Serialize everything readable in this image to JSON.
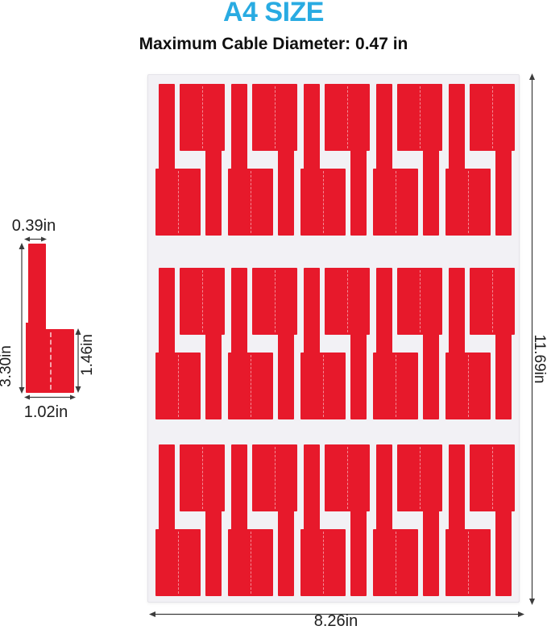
{
  "header": {
    "title": "A4 SIZE",
    "subtitle": "Maximum Cable Diameter: 0.47 in"
  },
  "label_diagram": {
    "strip_width": "0.39in",
    "total_height": "3.30in",
    "flag_height": "1.46in",
    "flag_width": "1.02in"
  },
  "sheet": {
    "height_label": "11.69in",
    "width_label": "8.26in",
    "rows": 3,
    "label_pairs_per_row": 5
  },
  "colors": {
    "label_red": "#e7192b",
    "title_blue": "#29abe2",
    "dimension_text": "#1e1e1e",
    "sheet_background": "#f2f1f5"
  }
}
